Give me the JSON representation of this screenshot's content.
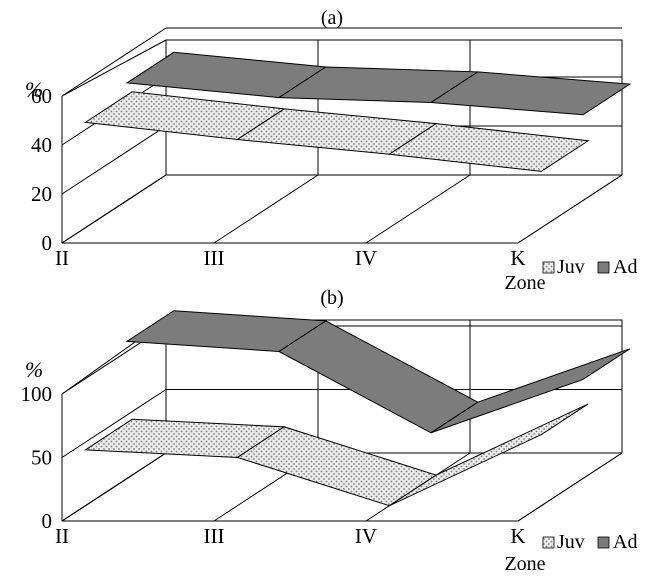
{
  "chart_data": [
    {
      "type": "area",
      "title": "(a)",
      "ylabel": "%",
      "xlabel": "Zone",
      "categories": [
        "II",
        "III",
        "IV",
        "K"
      ],
      "yticks": [
        "0",
        "20",
        "40",
        "60"
      ],
      "ylim": [
        0,
        60
      ],
      "series": [
        {
          "name": "Juv",
          "values": [
            43,
            36,
            30,
            23
          ]
        },
        {
          "name": "Ad",
          "values": [
            48,
            42,
            40,
            35
          ]
        }
      ],
      "legend": "right"
    },
    {
      "type": "area",
      "title": "(b)",
      "ylabel": "%",
      "xlabel": "Zone",
      "categories": [
        "II",
        "III",
        "IV",
        "K"
      ],
      "yticks": [
        "0",
        "50",
        "100"
      ],
      "ylim": [
        0,
        100
      ],
      "series": [
        {
          "name": "Juv",
          "values": [
            44,
            38,
            0,
            56
          ]
        },
        {
          "name": "Ad",
          "values": [
            108,
            100,
            36,
            78
          ]
        }
      ],
      "legend": "right"
    }
  ],
  "colors": {
    "juv_fill": "#e8e8e8",
    "juv_dots": "#8a8a8a",
    "ad_fill": "#7c7c7c",
    "line": "#000000"
  }
}
